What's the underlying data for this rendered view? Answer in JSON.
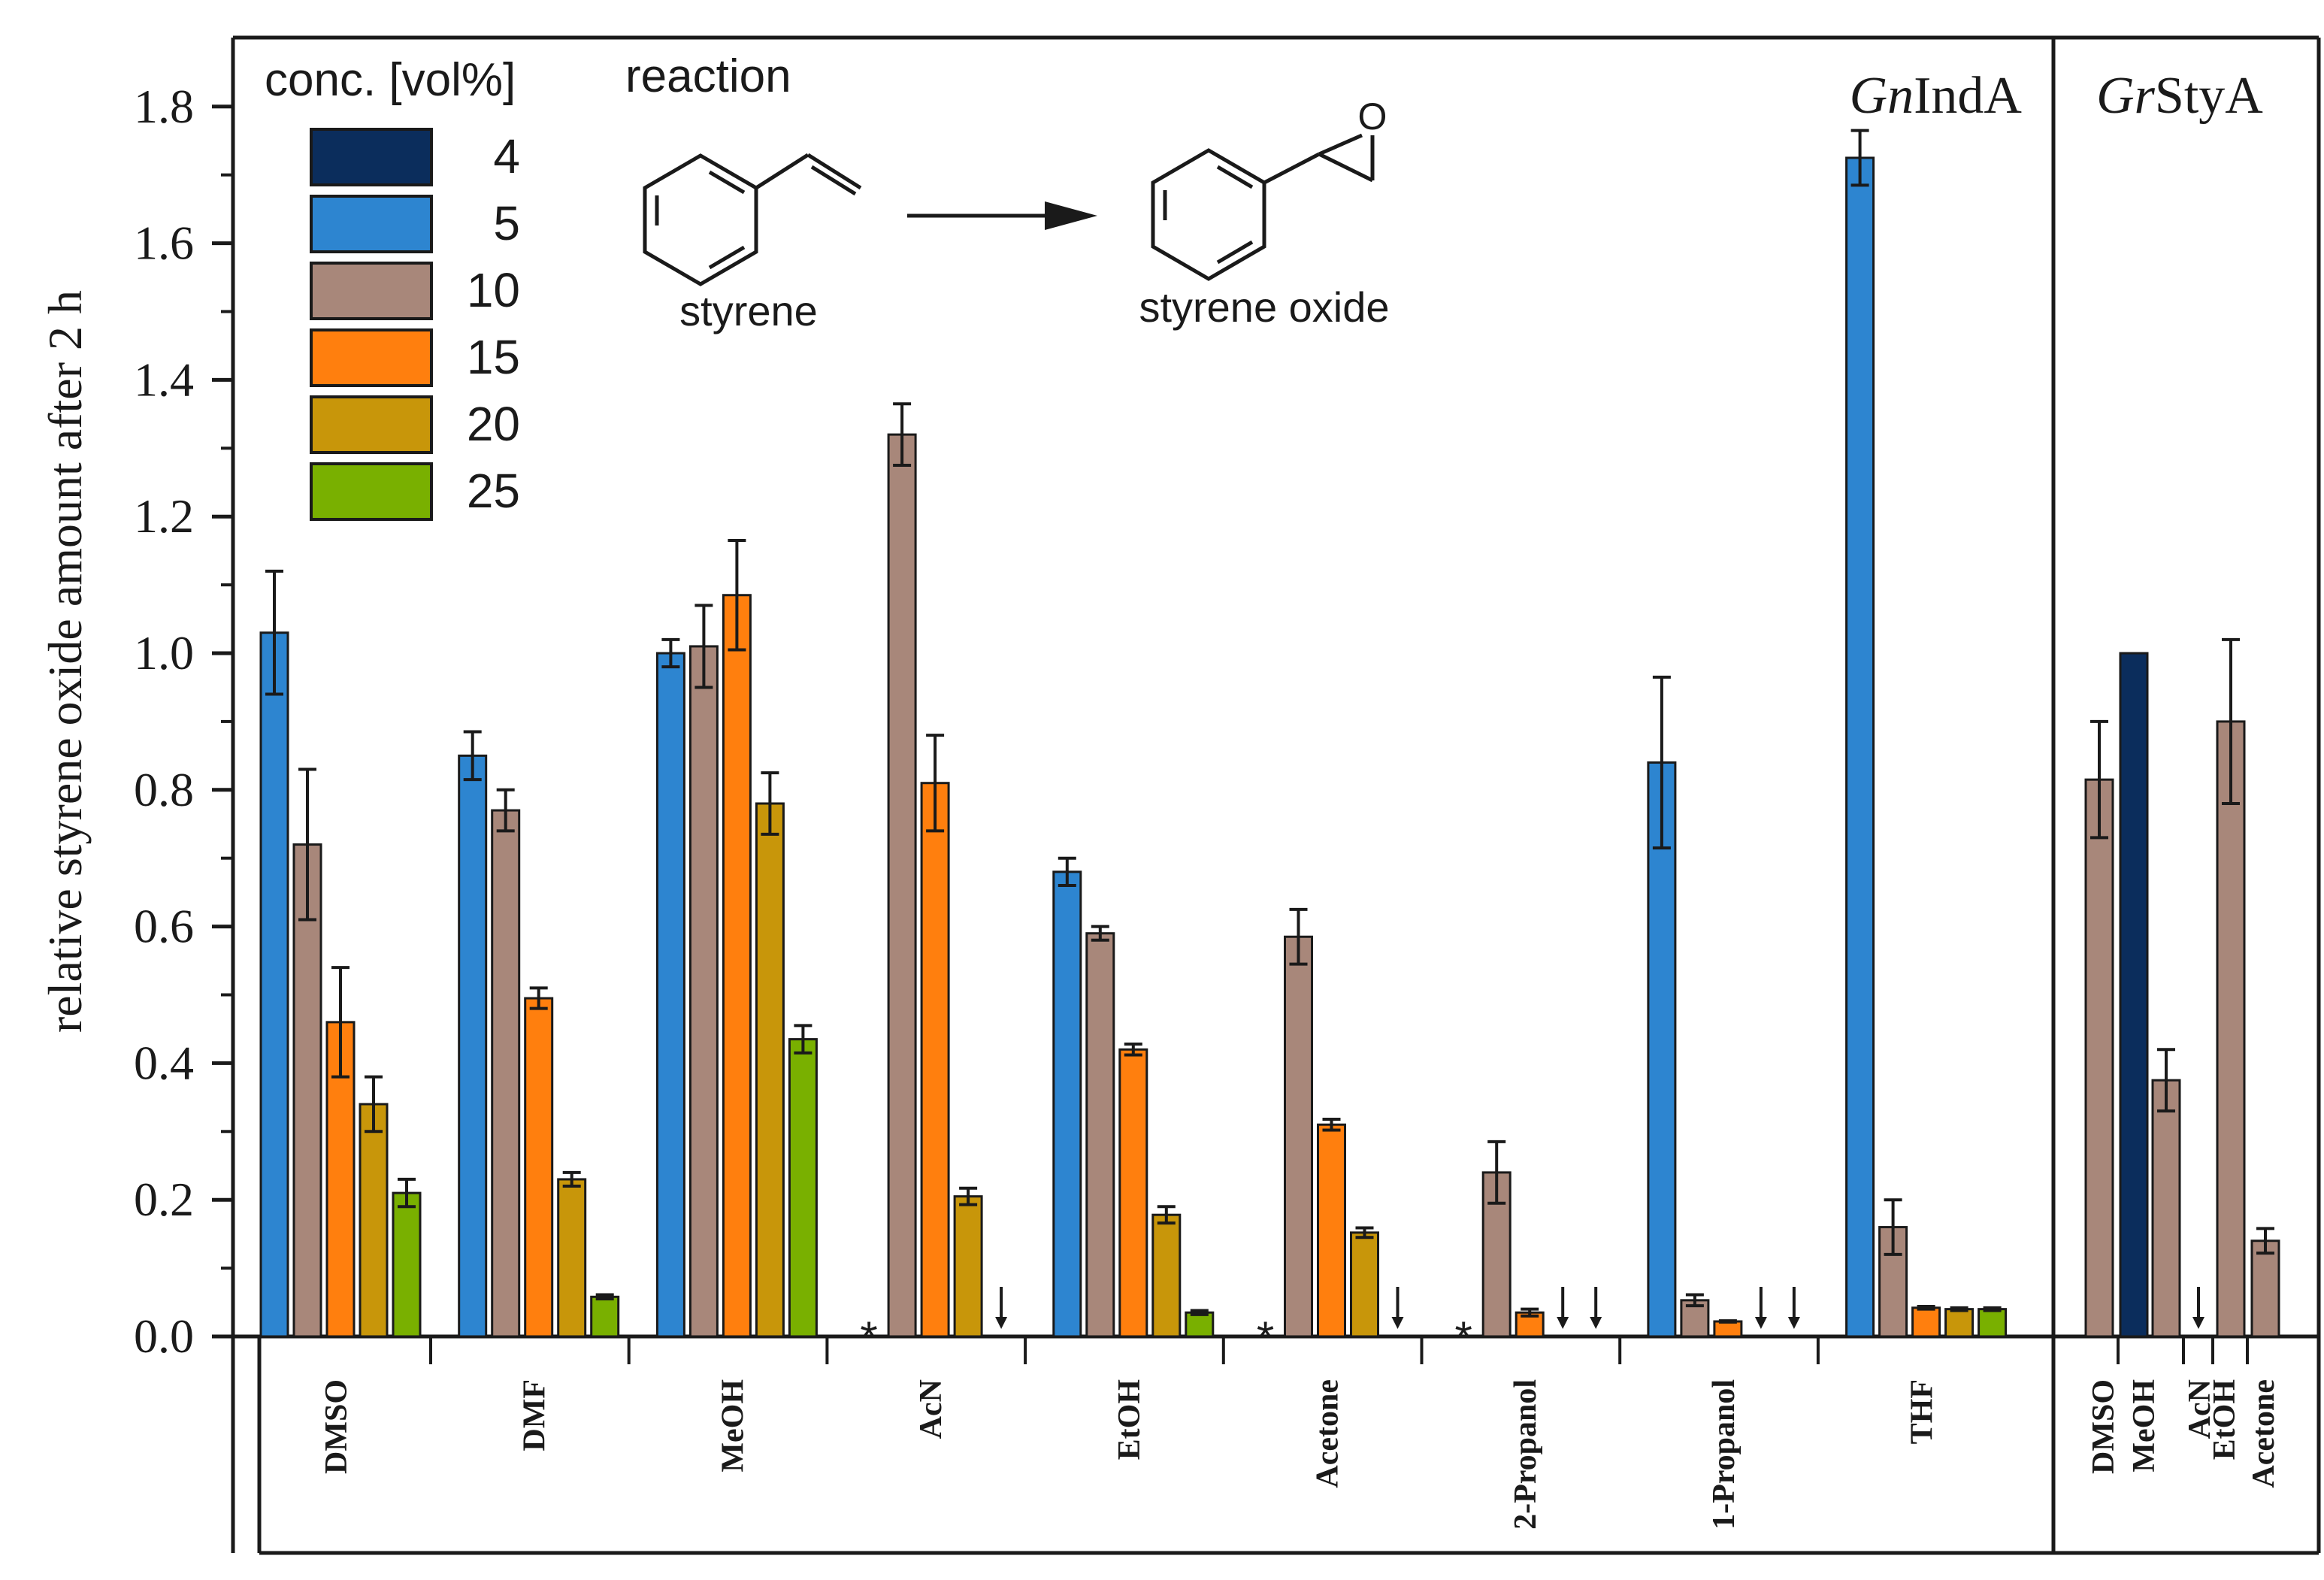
{
  "chart_data": {
    "type": "bar",
    "ylabel": "relative styrene oxide amount after 2 h",
    "ylim": [
      0,
      1.9
    ],
    "yticks": [
      0.0,
      0.2,
      0.4,
      0.6,
      0.8,
      1.0,
      1.2,
      1.4,
      1.6,
      1.8
    ],
    "ytick_labels": [
      "0.0",
      "0.2",
      "0.4",
      "0.6",
      "0.8",
      "1.0",
      "1.2",
      "1.4",
      "1.6",
      "1.8"
    ],
    "legend": {
      "title": "conc. [vol%]",
      "placement": "top-left",
      "entries": [
        {
          "label": "4",
          "color": "#0b2d5c"
        },
        {
          "label": "5",
          "color": "#2d85d0"
        },
        {
          "label": "10",
          "color": "#a8877a"
        },
        {
          "label": "15",
          "color": "#ff7f0e"
        },
        {
          "label": "20",
          "color": "#c8960a"
        },
        {
          "label": "25",
          "color": "#79b000"
        }
      ]
    },
    "panels": [
      {
        "title_italic": "Gn",
        "title_rest": "IndA",
        "groups": [
          {
            "solvent": "DMSO",
            "bars": [
              {
                "conc": "5",
                "value": 1.03,
                "err": 0.09
              },
              {
                "conc": "10",
                "value": 0.72,
                "err": 0.11
              },
              {
                "conc": "15",
                "value": 0.46,
                "err": 0.08
              },
              {
                "conc": "20",
                "value": 0.34,
                "err": 0.04
              },
              {
                "conc": "25",
                "value": 0.21,
                "err": 0.02
              }
            ]
          },
          {
            "solvent": "DMF",
            "bars": [
              {
                "conc": "5",
                "value": 0.85,
                "err": 0.035
              },
              {
                "conc": "10",
                "value": 0.77,
                "err": 0.03
              },
              {
                "conc": "15",
                "value": 0.495,
                "err": 0.015
              },
              {
                "conc": "20",
                "value": 0.23,
                "err": 0.01
              },
              {
                "conc": "25",
                "value": 0.058,
                "err": 0.003
              }
            ]
          },
          {
            "solvent": "MeOH",
            "bars": [
              {
                "conc": "5",
                "value": 1.0,
                "err": 0.02
              },
              {
                "conc": "10",
                "value": 1.01,
                "err": 0.06
              },
              {
                "conc": "15",
                "value": 1.085,
                "err": 0.08
              },
              {
                "conc": "20",
                "value": 0.78,
                "err": 0.045
              },
              {
                "conc": "25",
                "value": 0.435,
                "err": 0.02
              }
            ]
          },
          {
            "solvent": "AcN",
            "bars": [
              {
                "conc": "5",
                "marker": "*"
              },
              {
                "conc": "10",
                "value": 1.32,
                "err": 0.045
              },
              {
                "conc": "15",
                "value": 0.81,
                "err": 0.07
              },
              {
                "conc": "20",
                "value": 0.205,
                "err": 0.012
              },
              {
                "conc": "25",
                "marker": "arrow"
              }
            ]
          },
          {
            "solvent": "EtOH",
            "bars": [
              {
                "conc": "5",
                "value": 0.68,
                "err": 0.02
              },
              {
                "conc": "10",
                "value": 0.59,
                "err": 0.01
              },
              {
                "conc": "15",
                "value": 0.42,
                "err": 0.008
              },
              {
                "conc": "20",
                "value": 0.178,
                "err": 0.012
              },
              {
                "conc": "25",
                "value": 0.035,
                "err": 0.003
              }
            ]
          },
          {
            "solvent": "Acetone",
            "bars": [
              {
                "conc": "5",
                "marker": "*"
              },
              {
                "conc": "10",
                "value": 0.585,
                "err": 0.04
              },
              {
                "conc": "15",
                "value": 0.31,
                "err": 0.008
              },
              {
                "conc": "20",
                "value": 0.152,
                "err": 0.007
              },
              {
                "conc": "25",
                "marker": "arrow"
              }
            ]
          },
          {
            "solvent": "2-Propanol",
            "bars": [
              {
                "conc": "5",
                "marker": "*"
              },
              {
                "conc": "10",
                "value": 0.24,
                "err": 0.045
              },
              {
                "conc": "15",
                "value": 0.035,
                "err": 0.005
              },
              {
                "conc": "20",
                "marker": "arrow"
              },
              {
                "conc": "25",
                "marker": "arrow"
              }
            ]
          },
          {
            "solvent": "1-Propanol",
            "bars": [
              {
                "conc": "5",
                "value": 0.84,
                "err": 0.125
              },
              {
                "conc": "10",
                "value": 0.053,
                "err": 0.008
              },
              {
                "conc": "15",
                "value": 0.022,
                "err": 0.001
              },
              {
                "conc": "20",
                "marker": "arrow"
              },
              {
                "conc": "25",
                "marker": "arrow"
              }
            ]
          },
          {
            "solvent": "THF",
            "bars": [
              {
                "conc": "5",
                "value": 1.725,
                "err": 0.04
              },
              {
                "conc": "10",
                "value": 0.16,
                "err": 0.04
              },
              {
                "conc": "15",
                "value": 0.042,
                "err": 0.002
              },
              {
                "conc": "20",
                "value": 0.04,
                "err": 0.002
              },
              {
                "conc": "25",
                "value": 0.04,
                "err": 0.002
              }
            ]
          }
        ]
      },
      {
        "title_italic": "Gr",
        "title_rest": "StyA",
        "groups": [
          {
            "solvent": "DMSO",
            "bars": [
              {
                "conc": "10",
                "value": 0.815,
                "err": 0.085
              }
            ]
          },
          {
            "solvent": "MeOH",
            "bars": [
              {
                "conc": "4",
                "value": 1.0,
                "err": 0.0
              },
              {
                "conc": "10",
                "value": 0.375,
                "err": 0.045
              }
            ]
          },
          {
            "solvent": "AcN",
            "bars": [
              {
                "conc": "10",
                "marker": "arrow"
              }
            ]
          },
          {
            "solvent": "EtOH",
            "bars": [
              {
                "conc": "10",
                "value": 0.9,
                "err": 0.12
              }
            ]
          },
          {
            "solvent": "Acetone",
            "bars": [
              {
                "conc": "10",
                "value": 0.14,
                "err": 0.018
              }
            ]
          }
        ]
      }
    ],
    "annotations": {
      "reaction_title": "reaction",
      "reactant": "styrene",
      "product": "styrene oxide",
      "epoxide_atom": "O"
    }
  }
}
